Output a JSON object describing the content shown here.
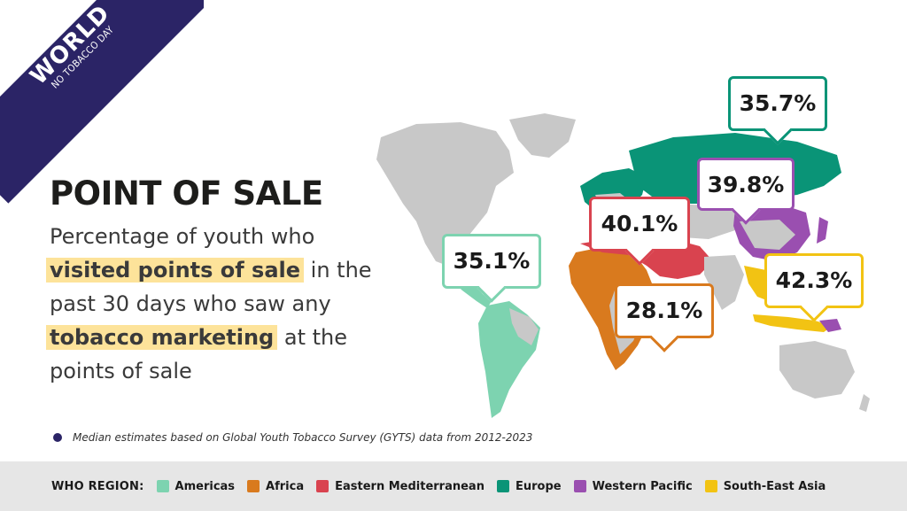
{
  "banner": {
    "title": "WORLD",
    "subtitle": "NO TOBACCO DAY"
  },
  "heading": "POINT OF SALE",
  "description": {
    "line1": "Percentage of youth who",
    "highlight1": "visited points of sale",
    "line2_rest": " in the",
    "line3": "past 30 days who saw any",
    "highlight2": "tobacco marketing",
    "line4_rest": " at the",
    "line5": "points of sale"
  },
  "callouts": {
    "americas": "35.1%",
    "africa": "28.1%",
    "eastern_mediterranean": "40.1%",
    "europe": "35.7%",
    "western_pacific": "39.8%",
    "south_east_asia": "42.3%"
  },
  "footnote": "Median estimates based on Global Youth Tobacco Survey (GYTS) data from 2012-2023",
  "legend": {
    "title": "WHO REGION:",
    "items": [
      {
        "label": "Americas",
        "color": "#7dd3b0"
      },
      {
        "label": "Africa",
        "color": "#d97a1e"
      },
      {
        "label": "Eastern Mediterranean",
        "color": "#d9434f"
      },
      {
        "label": "Europe",
        "color": "#0a9477"
      },
      {
        "label": "Western Pacific",
        "color": "#9a4fb0"
      },
      {
        "label": "South-East Asia",
        "color": "#f2c313"
      }
    ]
  },
  "colors": {
    "americas": "#7dd3b0",
    "africa": "#d97a1e",
    "eastern_mediterranean": "#d9434f",
    "europe": "#0a9477",
    "western_pacific": "#9a4fb0",
    "south_east_asia": "#f2c313",
    "land_other": "#c8c8c8",
    "banner": "#2b2466",
    "highlight": "#fde39a"
  }
}
